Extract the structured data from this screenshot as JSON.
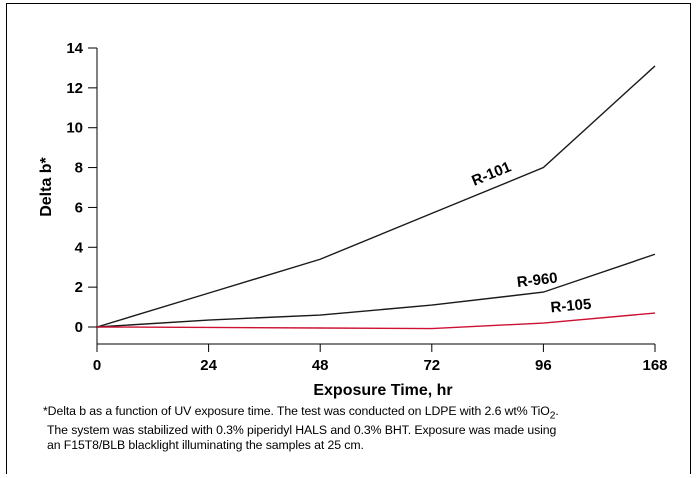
{
  "chart_data": {
    "type": "line",
    "x": [
      "0",
      "24",
      "48",
      "72",
      "96",
      "168"
    ],
    "ylim": [
      0,
      14
    ],
    "yticks": [
      "0",
      "2",
      "4",
      "6",
      "8",
      "10",
      "12",
      "14"
    ],
    "ylabel": "Delta b*",
    "xlabel": "Exposure Time, hr",
    "series": [
      {
        "name": "R-101",
        "color": "#1a1a1a",
        "values": [
          0,
          1.7,
          3.4,
          5.7,
          8.0,
          13.1
        ]
      },
      {
        "name": "R-960",
        "color": "#1a1a1a",
        "values": [
          0,
          0.35,
          0.6,
          1.1,
          1.75,
          3.65
        ]
      },
      {
        "name": "R-105",
        "color": "#cc1133",
        "values": [
          0,
          -0.02,
          -0.05,
          -0.08,
          0.2,
          0.7
        ]
      }
    ],
    "grid": false
  },
  "caption": {
    "line1_prefix": "*Delta b as a function of UV exposure time. The test was conducted on LDPE with 2.6 wt% TiO",
    "line1_sub": "2",
    "line1_suffix": ".",
    "line2": "The system was stabilized with 0.3% piperidyl HALS and 0.3% BHT. Exposure was made using",
    "line3": "an F15T8/BLB blacklight illuminating the samples at 25 cm."
  }
}
